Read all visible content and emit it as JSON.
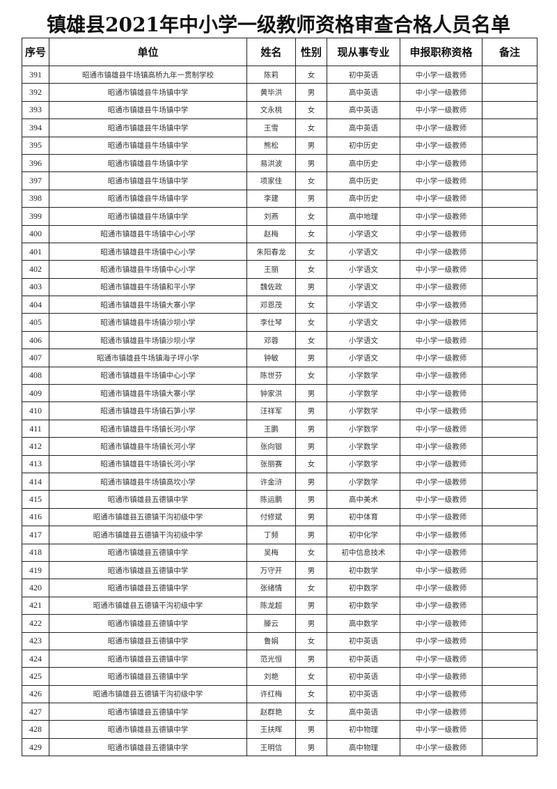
{
  "title": "镇雄县2021年中小学一级教师资格审查合格人员名单",
  "columns": [
    "序号",
    "单位",
    "姓名",
    "性别",
    "现从事专业",
    "申报职称资格",
    "备注"
  ],
  "rows": [
    [
      "391",
      "昭通市镇雄县牛场镇高桥九年一贯制学校",
      "陈莉",
      "女",
      "初中英语",
      "中小学一级教师",
      ""
    ],
    [
      "392",
      "昭通市镇雄县牛场镇中学",
      "黄毕洪",
      "男",
      "高中英语",
      "中小学一级教师",
      ""
    ],
    [
      "393",
      "昭通市镇雄县牛场镇中学",
      "文永桃",
      "女",
      "高中英语",
      "中小学一级教师",
      ""
    ],
    [
      "394",
      "昭通市镇雄县牛场镇中学",
      "王雪",
      "女",
      "高中英语",
      "中小学一级教师",
      ""
    ],
    [
      "395",
      "昭通市镇雄县牛场镇中学",
      "熊松",
      "男",
      "初中历史",
      "中小学一级教师",
      ""
    ],
    [
      "396",
      "昭通市镇雄县牛场镇中学",
      "易洪波",
      "男",
      "高中历史",
      "中小学一级教师",
      ""
    ],
    [
      "397",
      "昭通市镇雄县牛场镇中学",
      "项家佳",
      "女",
      "高中历史",
      "中小学一级教师",
      ""
    ],
    [
      "398",
      "昭通市镇雄县牛场镇中学",
      "李建",
      "男",
      "高中历史",
      "中小学一级教师",
      ""
    ],
    [
      "399",
      "昭通市镇雄县牛场镇中学",
      "刘燕",
      "女",
      "高中地理",
      "中小学一级教师",
      ""
    ],
    [
      "400",
      "昭通市镇雄县牛场镇中心小学",
      "赵梅",
      "女",
      "小学语文",
      "中小学一级教师",
      ""
    ],
    [
      "401",
      "昭通市镇雄县牛场镇中心小学",
      "朱阳春龙",
      "女",
      "小学语文",
      "中小学一级教师",
      ""
    ],
    [
      "402",
      "昭通市镇雄县牛场镇中心小学",
      "王丽",
      "女",
      "小学语文",
      "中小学一级教师",
      ""
    ],
    [
      "403",
      "昭通市镇雄县牛场镇和平小学",
      "魏佐政",
      "男",
      "小学语文",
      "中小学一级教师",
      ""
    ],
    [
      "404",
      "昭通市镇雄县牛场镇大寨小学",
      "邓恩茂",
      "女",
      "小学语文",
      "中小学一级教师",
      ""
    ],
    [
      "405",
      "昭通市镇雄县牛场镇沙坝小学",
      "李仕琴",
      "女",
      "小学语文",
      "中小学一级教师",
      ""
    ],
    [
      "406",
      "昭通市镇雄县牛场镇沙坝小学",
      "邓蓉",
      "女",
      "小学语文",
      "中小学一级教师",
      ""
    ],
    [
      "407",
      "昭通市镇雄县牛场镇海子坪小学",
      "钟敏",
      "男",
      "小学语文",
      "中小学一级教师",
      ""
    ],
    [
      "408",
      "昭通市镇雄县牛场镇中心小学",
      "陈世芬",
      "女",
      "小学数学",
      "中小学一级教师",
      ""
    ],
    [
      "409",
      "昭通市镇雄县牛场镇大寨小学",
      "钟家洪",
      "男",
      "小学数学",
      "中小学一级教师",
      ""
    ],
    [
      "410",
      "昭通市镇雄县牛场镇石笋小学",
      "汪祥军",
      "男",
      "小学数学",
      "中小学一级教师",
      ""
    ],
    [
      "411",
      "昭通市镇雄县牛场镇长河小学",
      "王鹏",
      "男",
      "小学数学",
      "中小学一级教师",
      ""
    ],
    [
      "412",
      "昭通市镇雄县牛场镇长河小学",
      "张向银",
      "男",
      "小学数学",
      "中小学一级教师",
      ""
    ],
    [
      "413",
      "昭通市镇雄县牛场镇长河小学",
      "张丽赛",
      "女",
      "小学数学",
      "中小学一级教师",
      ""
    ],
    [
      "414",
      "昭通市镇雄县牛场镇高坎小学",
      "许金浒",
      "男",
      "小学数学",
      "中小学一级教师",
      ""
    ],
    [
      "415",
      "昭通市镇雄县五德镇中学",
      "陈运鹏",
      "男",
      "高中美术",
      "中小学一级教师",
      ""
    ],
    [
      "416",
      "昭通市镇雄县五德镇干沟初级中学",
      "付修斌",
      "男",
      "初中体育",
      "中小学一级教师",
      ""
    ],
    [
      "417",
      "昭通市镇雄县五德镇干沟初级中学",
      "丁频",
      "男",
      "初中化学",
      "中小学一级教师",
      ""
    ],
    [
      "418",
      "昭通市镇雄县五德镇中学",
      "吴梅",
      "女",
      "初中信息技术",
      "中小学一级教师",
      ""
    ],
    [
      "419",
      "昭通市镇雄县五德镇中学",
      "万守开",
      "男",
      "初中数学",
      "中小学一级教师",
      ""
    ],
    [
      "420",
      "昭通市镇雄县五德镇中学",
      "张绪情",
      "女",
      "初中数学",
      "中小学一级教师",
      ""
    ],
    [
      "421",
      "昭通市镇雄县五德镇干沟初级中学",
      "陈龙超",
      "男",
      "初中数学",
      "中小学一级教师",
      ""
    ],
    [
      "422",
      "昭通市镇雄县五德镇中学",
      "滕云",
      "男",
      "高中数学",
      "中小学一级教师",
      ""
    ],
    [
      "423",
      "昭通市镇雄县五德镇中学",
      "鲁娟",
      "女",
      "初中英语",
      "中小学一级教师",
      ""
    ],
    [
      "424",
      "昭通市镇雄县五德镇中学",
      "范光恒",
      "男",
      "初中英语",
      "中小学一级教师",
      ""
    ],
    [
      "425",
      "昭通市镇雄县五德镇中学",
      "刘艳",
      "女",
      "初中英语",
      "中小学一级教师",
      ""
    ],
    [
      "426",
      "昭通市镇雄县五德镇干沟初级中学",
      "许红梅",
      "女",
      "初中英语",
      "中小学一级教师",
      ""
    ],
    [
      "427",
      "昭通市镇雄县五德镇中学",
      "赵群艳",
      "女",
      "高中英语",
      "中小学一级教师",
      ""
    ],
    [
      "428",
      "昭通市镇雄县五德镇中学",
      "王扶晖",
      "男",
      "初中物理",
      "中小学一级教师",
      ""
    ],
    [
      "429",
      "昭通市镇雄县五德镇中学",
      "王明信",
      "男",
      "高中物理",
      "中小学一级教师",
      ""
    ]
  ]
}
